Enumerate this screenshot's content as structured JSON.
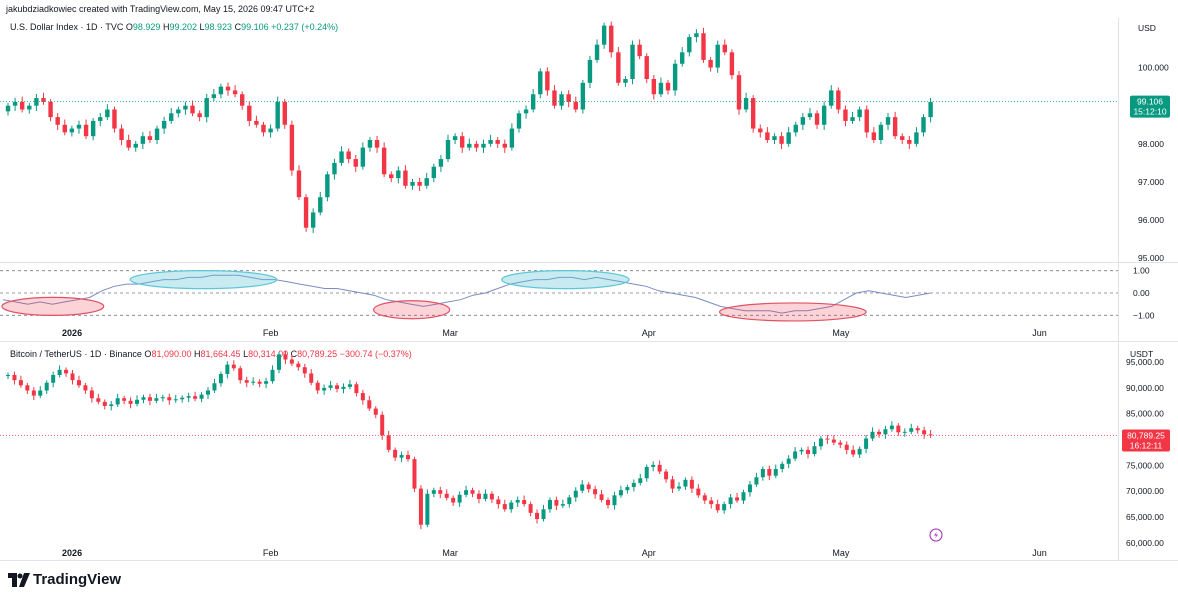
{
  "credit": "jakubdziadkowiec created with TradingView.com, May 15, 2026 09:47 UTC+2",
  "brand": {
    "name": "TradingView",
    "logo": "tradingview-logo-icon"
  },
  "colors": {
    "up": "#089981",
    "down": "#f23645",
    "osc_line": "#7b8cc4",
    "ellipse_blue": "#5fc6d6",
    "ellipse_red": "#e05266",
    "grid": "#f0f3fa"
  },
  "time_axis": {
    "labels": [
      "2026",
      "Feb",
      "Mar",
      "Apr",
      "May",
      "Jun"
    ],
    "dates": [
      "2026-01-01",
      "2026-02-01",
      "2026-03-01",
      "2026-04-01",
      "2026-05-01",
      "2026-06-01"
    ]
  },
  "dxy": {
    "title": "U.S. Dollar Index · 1D · TVC",
    "open_label": "O",
    "open": "98.929",
    "high_label": "H",
    "high": "99.202",
    "low_label": "L",
    "low": "98.923",
    "close_label": "C",
    "close": "99.106",
    "change": "+0.237 (+0.24%)",
    "currency": "USD",
    "ticks": [
      "100.000",
      "99.000",
      "98.000",
      "97.000",
      "96.000",
      "95.000"
    ],
    "last_price": "99.106",
    "countdown": "15:12:10"
  },
  "oscillator": {
    "ticks": [
      "1.00",
      "0.00",
      "−1.00"
    ],
    "levels": [
      1,
      0,
      -1
    ]
  },
  "btc": {
    "title": "Bitcoin / TetherUS · 1D · Binance",
    "open_label": "O",
    "open": "81,090.00",
    "high_label": "H",
    "high": "81,664.45",
    "low_label": "L",
    "low": "80,314.00",
    "close_label": "C",
    "close": "80,789.25",
    "change": "−300.74 (−0.37%)",
    "currency": "USDT",
    "ticks": [
      "95,000.00",
      "90,000.00",
      "85,000.00",
      "80,000.00",
      "75,000.00",
      "70,000.00",
      "65,000.00",
      "60,000.00"
    ],
    "last_price": "80,789.25",
    "countdown": "16:12:11"
  },
  "chart_data": [
    {
      "type": "candlestick",
      "title": "U.S. Dollar Index · 1D · TVC",
      "ylabel": "USD",
      "ylim": [
        94.9,
        101.3
      ],
      "x_start": "2025-12-22",
      "x_end": "2026-05-15",
      "close": [
        99.0,
        99.1,
        98.9,
        99.0,
        99.2,
        99.1,
        98.7,
        98.5,
        98.3,
        98.4,
        98.5,
        98.2,
        98.6,
        98.7,
        98.9,
        98.4,
        98.1,
        97.9,
        98.0,
        98.2,
        98.1,
        98.4,
        98.6,
        98.8,
        98.9,
        99.0,
        98.8,
        98.7,
        99.2,
        99.3,
        99.5,
        99.4,
        99.3,
        99.0,
        98.6,
        98.5,
        98.3,
        98.4,
        99.1,
        98.5,
        97.3,
        96.6,
        95.8,
        96.2,
        96.6,
        97.2,
        97.5,
        97.8,
        97.6,
        97.4,
        97.9,
        98.1,
        97.9,
        97.2,
        97.1,
        97.3,
        96.9,
        97.0,
        96.9,
        97.1,
        97.4,
        97.6,
        98.1,
        98.2,
        97.9,
        98.0,
        97.9,
        98.0,
        98.1,
        98.0,
        97.9,
        98.4,
        98.8,
        98.9,
        99.3,
        99.9,
        99.4,
        99.0,
        99.3,
        99.1,
        98.9,
        99.6,
        100.2,
        100.6,
        101.1,
        100.4,
        99.6,
        99.7,
        100.6,
        100.3,
        99.7,
        99.3,
        99.6,
        99.4,
        100.1,
        100.4,
        100.8,
        100.9,
        100.2,
        100.0,
        100.6,
        100.4,
        99.8,
        98.9,
        99.2,
        98.4,
        98.3,
        98.1,
        98.2,
        98.0,
        98.3,
        98.5,
        98.7,
        98.8,
        98.5,
        99.0,
        99.4,
        98.9,
        98.6,
        98.7,
        98.9,
        98.3,
        98.1,
        98.5,
        98.7,
        98.2,
        98.1,
        98.0,
        98.3,
        98.7,
        99.1
      ]
    },
    {
      "type": "line",
      "title": "oscillator",
      "ylim": [
        -1.3,
        1.3
      ],
      "levels": [
        1.0,
        0.0,
        -1.0
      ],
      "values": [
        -0.3,
        -0.4,
        -0.5,
        -0.4,
        -0.5,
        -0.4,
        -0.3,
        -0.2,
        0.1,
        0.3,
        0.4,
        0.4,
        0.5,
        0.6,
        0.6,
        0.7,
        0.7,
        0.8,
        0.8,
        0.8,
        0.7,
        0.6,
        0.6,
        0.5,
        0.4,
        0.3,
        0.2,
        0.2,
        0.1,
        0.0,
        -0.1,
        -0.3,
        -0.4,
        -0.5,
        -0.6,
        -0.5,
        -0.4,
        -0.3,
        -0.1,
        0.0,
        0.2,
        0.4,
        0.5,
        0.6,
        0.6,
        0.7,
        0.7,
        0.6,
        0.7,
        0.6,
        0.5,
        0.4,
        0.3,
        0.1,
        0.0,
        -0.1,
        -0.2,
        -0.4,
        -0.6,
        -0.7,
        -0.8,
        -0.8,
        -0.8,
        -0.9,
        -0.8,
        -0.8,
        -0.7,
        -0.6,
        -0.3,
        0.0,
        0.1,
        0.0,
        -0.1,
        -0.2,
        -0.1,
        0.0
      ],
      "annotations": [
        {
          "shape": "ellipse",
          "color": "red",
          "x_from": "2025-12-22",
          "x_to": "2026-01-05",
          "y": -0.6
        },
        {
          "shape": "ellipse",
          "color": "blue",
          "x_from": "2026-01-11",
          "x_to": "2026-02-01",
          "y": 0.6
        },
        {
          "shape": "ellipse",
          "color": "red",
          "x_from": "2026-02-18",
          "x_to": "2026-02-28",
          "y": -0.75
        },
        {
          "shape": "ellipse",
          "color": "blue",
          "x_from": "2026-03-10",
          "x_to": "2026-03-28",
          "y": 0.6
        },
        {
          "shape": "ellipse",
          "color": "red",
          "x_from": "2026-04-13",
          "x_to": "2026-05-04",
          "y": -0.85
        }
      ]
    },
    {
      "type": "candlestick",
      "title": "Bitcoin / TetherUS · 1D · Binance",
      "ylabel": "USDT",
      "ylim": [
        59000,
        98500
      ],
      "x_start": "2025-12-22",
      "x_end": "2026-05-15",
      "close": [
        92500,
        91500,
        90500,
        89500,
        88500,
        89500,
        91000,
        92500,
        93500,
        92800,
        91500,
        90500,
        89500,
        88000,
        87300,
        86500,
        86800,
        88000,
        87500,
        86900,
        87700,
        88200,
        87500,
        88000,
        88200,
        87600,
        87800,
        88100,
        88400,
        87900,
        88700,
        89500,
        90900,
        92700,
        94500,
        93800,
        91500,
        91000,
        91200,
        90800,
        91300,
        93500,
        96500,
        95500,
        94700,
        94000,
        92800,
        91000,
        89500,
        90000,
        90500,
        89800,
        90200,
        90700,
        89000,
        87600,
        86000,
        84800,
        80800,
        78000,
        76500,
        77000,
        76200,
        70500,
        63500,
        69500,
        70200,
        69500,
        68700,
        67800,
        69300,
        70200,
        69500,
        68500,
        69500,
        68400,
        67500,
        66500,
        67800,
        68300,
        67500,
        65800,
        64600,
        66500,
        68300,
        67200,
        67500,
        68800,
        70100,
        71300,
        70400,
        69400,
        68300,
        67300,
        69200,
        70200,
        70800,
        71600,
        72500,
        74700,
        75100,
        73800,
        72300,
        70500,
        70900,
        72200,
        70500,
        69200,
        68200,
        67500,
        66300,
        67500,
        68800,
        68200,
        69800,
        71300,
        72700,
        74300,
        73000,
        74300,
        75300,
        76300,
        77700,
        78000,
        77200,
        78700,
        80200,
        80000,
        79400,
        79000,
        78000,
        77100,
        78200,
        80200,
        81500,
        81000,
        82000,
        82700,
        81400,
        81500,
        82200,
        81800,
        81000,
        80800
      ]
    }
  ]
}
